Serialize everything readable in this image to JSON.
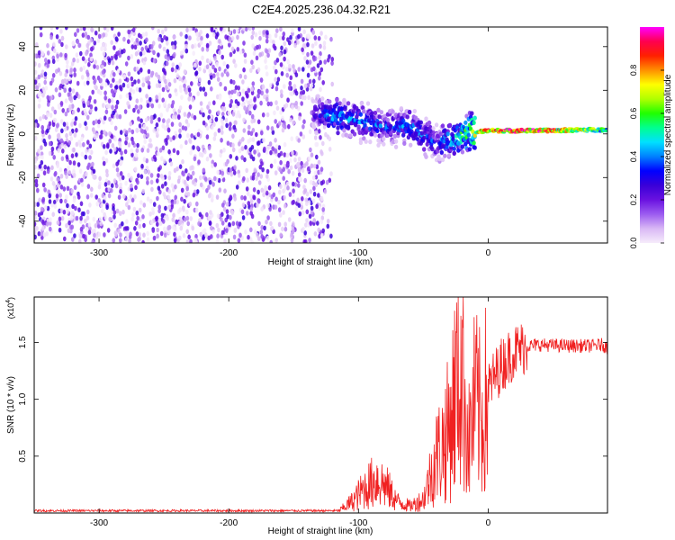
{
  "title": "C2E4.2025.236.04.32.R21",
  "chart_data": [
    {
      "type": "heatmap",
      "title": "C2E4.2025.236.04.32.R21",
      "xlabel": "Height of straight line (km)",
      "ylabel": "Frequency (Hz)",
      "xlim": [
        -350,
        92
      ],
      "ylim": [
        -50,
        49
      ],
      "xticks": [
        -300,
        -200,
        -100,
        0
      ],
      "yticks": [
        -40,
        -20,
        0,
        20,
        40
      ],
      "colorbar": {
        "label": "Normalized spectral amplitude",
        "range": [
          0,
          1
        ],
        "ticks": [
          "0.0",
          "0.2",
          "0.4",
          "0.6",
          "0.8"
        ],
        "tick_values": [
          0,
          0.2,
          0.4,
          0.6,
          0.8
        ],
        "colors": [
          "#f6ecfb",
          "#d9b8f5",
          "#9c5cf0",
          "#6a12e0",
          "#3a00d8",
          "#0000ff",
          "#0080ff",
          "#00e0ff",
          "#00ff90",
          "#20ff00",
          "#b0ff00",
          "#ffff00",
          "#ff9000",
          "#ff2000",
          "#ff0050",
          "#ff00ff"
        ]
      },
      "regions": [
        {
          "name": "broadband noise",
          "x": [
            -350,
            -127
          ],
          "freq_range": [
            -50,
            49
          ],
          "amplitude": 0.1
        },
        {
          "name": "signal track",
          "points": [
            {
              "x": -135,
              "freq": 10,
              "amplitude": 0.3
            },
            {
              "x": -120,
              "freq": 8,
              "amplitude": 0.5
            },
            {
              "x": -100,
              "freq": 6,
              "amplitude": 0.45
            },
            {
              "x": -80,
              "freq": 3,
              "amplitude": 0.4
            },
            {
              "x": -60,
              "freq": 4,
              "amplitude": 0.45
            },
            {
              "x": -40,
              "freq": -5,
              "amplitude": 0.4
            },
            {
              "x": -20,
              "freq": 0,
              "amplitude": 0.6
            },
            {
              "x": 0,
              "freq": 1.5,
              "amplitude": 0.9
            },
            {
              "x": 40,
              "freq": 1.5,
              "amplitude": 0.95
            },
            {
              "x": 92,
              "freq": 2,
              "amplitude": 0.6
            }
          ]
        }
      ]
    },
    {
      "type": "line",
      "xlabel": "Height of straight line (km)",
      "ylabel": "SNR (10 * v/v)",
      "yscale_label": "(x10",
      "yscale_exp": "4",
      "xlim": [
        -350,
        92
      ],
      "ylim": [
        0,
        1.9
      ],
      "xticks": [
        -300,
        -200,
        -100,
        0
      ],
      "yticks": [
        0.5,
        1.0,
        1.5
      ],
      "ytick_labels": [
        "0.5",
        "1.0",
        "1.5"
      ],
      "color": "#f02020",
      "series": [
        {
          "name": "SNR",
          "x": [
            -350,
            -115,
            -105,
            -95,
            -85,
            -78,
            -70,
            -60,
            -50,
            -40,
            -35,
            -30,
            -25,
            -20,
            -15,
            -10,
            -5,
            0,
            10,
            20,
            30,
            40,
            60,
            80,
            88,
            92
          ],
          "y": [
            0.02,
            0.02,
            0.1,
            0.22,
            0.3,
            0.22,
            0.1,
            0.06,
            0.12,
            0.5,
            0.6,
            0.75,
            1.1,
            1.3,
            0.6,
            1.0,
            0.8,
            1.1,
            1.3,
            1.42,
            1.47,
            1.48,
            1.47,
            1.47,
            1.48,
            1.45
          ]
        }
      ]
    }
  ]
}
